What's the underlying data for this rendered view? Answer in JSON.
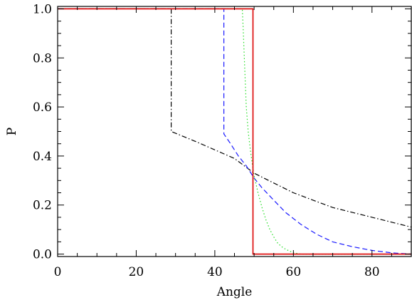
{
  "chart_data": {
    "type": "line",
    "xlabel": "Angle",
    "ylabel": "P",
    "xlim": [
      0,
      90
    ],
    "ylim": [
      -0.01,
      1.01
    ],
    "grid": false,
    "xticks": [
      0,
      20,
      40,
      60,
      80
    ],
    "xtick_labels": [
      "0",
      "20",
      "40",
      "60",
      "80"
    ],
    "yticks": [
      0.0,
      0.2,
      0.4,
      0.6,
      0.8,
      1.0
    ],
    "ytick_labels": [
      "0.0",
      "0.2",
      "0.4",
      "0.6",
      "0.8",
      "1.0"
    ],
    "series": [
      {
        "style": "dash-dot",
        "color": "#000000",
        "x": [
          0,
          28.9,
          28.9,
          35,
          40,
          45,
          50,
          55,
          60,
          65,
          70,
          75,
          80,
          85,
          90
        ],
        "y": [
          1.0,
          1.0,
          0.5,
          0.46,
          0.425,
          0.39,
          0.33,
          0.29,
          0.25,
          0.22,
          0.19,
          0.17,
          0.15,
          0.13,
          0.11
        ]
      },
      {
        "style": "dashed",
        "color": "#1a1aff",
        "x": [
          0,
          42.3,
          42.3,
          44,
          46,
          48,
          50,
          52,
          55,
          58,
          62,
          66,
          70,
          75,
          80,
          85,
          90
        ],
        "y": [
          1.0,
          1.0,
          0.49,
          0.45,
          0.4,
          0.36,
          0.31,
          0.27,
          0.22,
          0.17,
          0.12,
          0.08,
          0.05,
          0.03,
          0.015,
          0.005,
          0.0
        ]
      },
      {
        "style": "dotted",
        "color": "#22dd22",
        "x": [
          0,
          47.0,
          47.2,
          47.6,
          48,
          48.5,
          49,
          49.5,
          50,
          51,
          52,
          53,
          54,
          55,
          56,
          57,
          58,
          60,
          62,
          90
        ],
        "y": [
          1.0,
          1.0,
          0.93,
          0.76,
          0.6,
          0.5,
          0.43,
          0.37,
          0.32,
          0.25,
          0.19,
          0.14,
          0.1,
          0.07,
          0.045,
          0.03,
          0.02,
          0.005,
          0.0,
          0.0
        ]
      },
      {
        "style": "solid",
        "color": "#dd0000",
        "x": [
          0,
          49.7,
          49.7,
          90
        ],
        "y": [
          1.0,
          1.0,
          0.0,
          0.0
        ]
      }
    ]
  }
}
